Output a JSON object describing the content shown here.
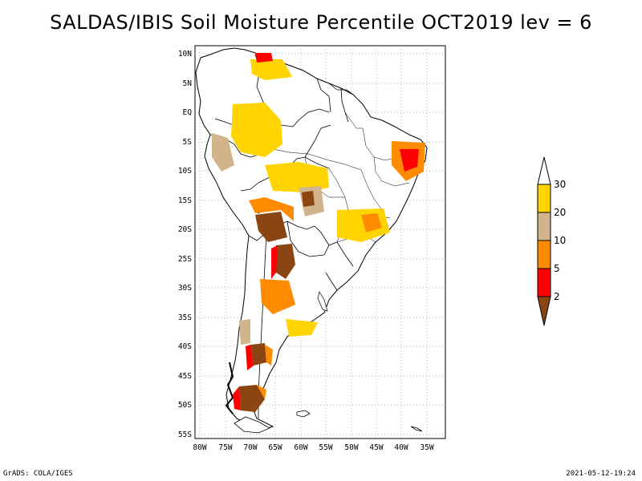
{
  "title": "SALDAS/IBIS Soil Moisture Percentile OCT2019 lev = 6",
  "footer": {
    "left": "GrADS: COLA/IGES",
    "right": "2021-05-12-19:24"
  },
  "map": {
    "lat_labels": [
      "10N",
      "5N",
      "EQ",
      "5S",
      "10S",
      "15S",
      "20S",
      "25S",
      "30S",
      "35S",
      "40S",
      "45S",
      "50S",
      "55S"
    ],
    "lon_labels": [
      "80W",
      "75W",
      "70W",
      "65W",
      "60W",
      "55W",
      "50W",
      "45W",
      "40W",
      "35W"
    ],
    "grid": "dotted"
  },
  "colorbar": {
    "labels": [
      "30",
      "20",
      "10",
      "5",
      "2"
    ],
    "colors": {
      "above_30": "#ffffff",
      "20_30": "#ffd400",
      "10_20": "#d2b48c",
      "5_10": "#ff8c00",
      "2_5": "#ff0000",
      "below_2": "#8b4513"
    }
  }
}
